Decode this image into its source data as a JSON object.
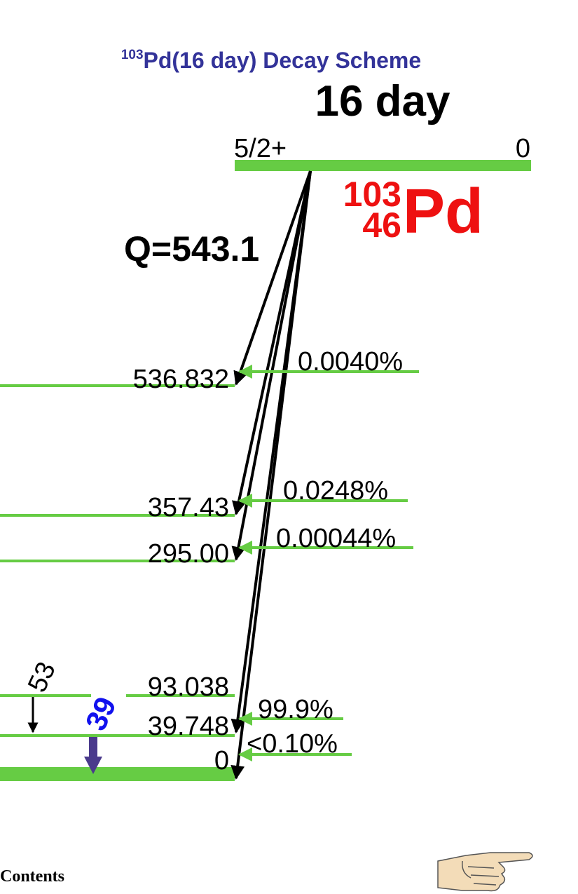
{
  "title": {
    "mass_sup": "103",
    "text": "Pd(16 day) Decay Scheme"
  },
  "half_life": "16 day",
  "parent": {
    "spin": "5/2+",
    "energy": "0",
    "mass_number": "103",
    "atomic_number": "46",
    "symbol": "Pd"
  },
  "q_value": "Q=543.1",
  "levels": [
    {
      "energy": "536.832",
      "intensity": "0.0040%"
    },
    {
      "energy": "357.43",
      "intensity": "0.0248%"
    },
    {
      "energy": "295.00",
      "intensity": "0.00044%"
    },
    {
      "energy": "93.038",
      "intensity": ""
    },
    {
      "energy": "39.748",
      "intensity": "99.9%"
    },
    {
      "energy": "0",
      "intensity": "<0.10%"
    }
  ],
  "gammas": [
    {
      "label": "53"
    },
    {
      "label": "39"
    }
  ],
  "footer": {
    "contents_link": "Contents"
  },
  "colors": {
    "title": "#333399",
    "level_line": "#66cc44",
    "parent_label": "#ee1111",
    "gamma_39_label": "#1111ee",
    "gamma_39_arrow": "#4a3a8c",
    "text": "#000000"
  },
  "icons": {
    "next_page": "pointing-hand-icon"
  }
}
